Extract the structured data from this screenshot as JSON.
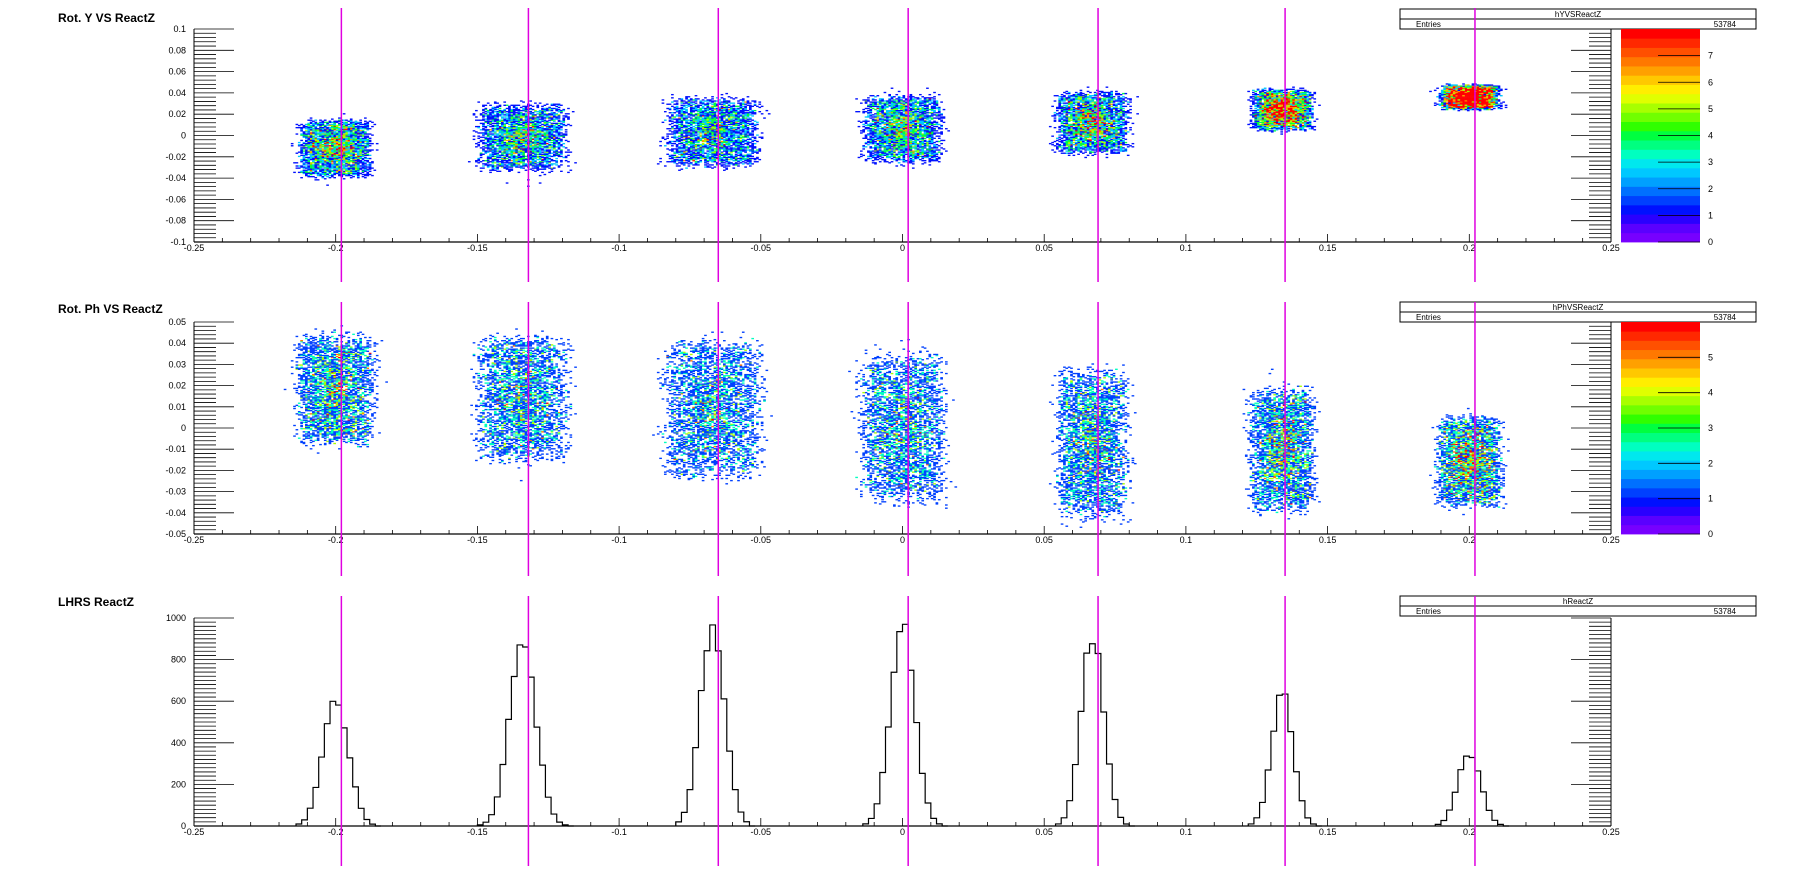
{
  "chart_data": [
    {
      "type": "heatmap",
      "title": "Rot. Y VS ReactZ",
      "stats": {
        "name": "hYVSReactZ",
        "entries_label": "Entries",
        "entries": "53784"
      },
      "x": {
        "min": -0.25,
        "max": 0.25,
        "ticks": [
          -0.25,
          -0.2,
          -0.15,
          -0.1,
          -0.05,
          0,
          0.05,
          0.1,
          0.15,
          0.2,
          0.25
        ],
        "tick_labels": [
          "-0.25",
          "-0.2",
          "-0.15",
          "-0.1",
          "-0.05",
          "0",
          "0.05",
          "0.1",
          "0.15",
          "0.2",
          "0.25"
        ]
      },
      "y": {
        "min": -0.1,
        "max": 0.1,
        "ticks": [
          -0.1,
          -0.08,
          -0.06,
          -0.04,
          -0.02,
          0,
          0.02,
          0.04,
          0.06,
          0.08,
          0.1
        ],
        "tick_labels": [
          "-0.1",
          "-0.08",
          "-0.06",
          "-0.04",
          "-0.02",
          "0",
          "0.02",
          "0.04",
          "0.06",
          "0.08",
          "0.1"
        ]
      },
      "palette": {
        "min": 0,
        "max": 8,
        "ticks": [
          0,
          1,
          2,
          3,
          4,
          5,
          6,
          7
        ],
        "tick_labels": [
          "0",
          "1",
          "2",
          "3",
          "4",
          "5",
          "6",
          "7"
        ]
      },
      "clusters": [
        {
          "x_center": -0.2,
          "x_width": 0.022,
          "y_center": -0.012,
          "y_half_height": 0.028,
          "y_tilt": 0
        },
        {
          "x_center": -0.134,
          "x_width": 0.027,
          "y_center": -0.002,
          "y_half_height": 0.033,
          "y_tilt": 0
        },
        {
          "x_center": -0.067,
          "x_width": 0.028,
          "y_center": 0.003,
          "y_half_height": 0.034,
          "y_tilt": 0
        },
        {
          "x_center": 0.0,
          "x_width": 0.024,
          "y_center": 0.006,
          "y_half_height": 0.033,
          "y_tilt": 0
        },
        {
          "x_center": 0.067,
          "x_width": 0.022,
          "y_center": 0.012,
          "y_half_height": 0.03,
          "y_tilt": 0
        },
        {
          "x_center": 0.134,
          "x_width": 0.018,
          "y_center": 0.024,
          "y_half_height": 0.02,
          "y_tilt": 0
        },
        {
          "x_center": 0.2,
          "x_width": 0.018,
          "y_center": 0.036,
          "y_half_height": 0.012,
          "y_tilt": 0
        }
      ]
    },
    {
      "type": "heatmap",
      "title": "Rot. Ph VS ReactZ",
      "stats": {
        "name": "hPhVSReactZ",
        "entries_label": "Entries",
        "entries": "53784"
      },
      "x": {
        "min": -0.25,
        "max": 0.25,
        "ticks": [
          -0.25,
          -0.2,
          -0.15,
          -0.1,
          -0.05,
          0,
          0.05,
          0.1,
          0.15,
          0.2,
          0.25
        ],
        "tick_labels": [
          "-0.25",
          "-0.2",
          "-0.15",
          "-0.1",
          "-0.05",
          "0",
          "0.05",
          "0.1",
          "0.15",
          "0.2",
          "0.25"
        ]
      },
      "y": {
        "min": -0.05,
        "max": 0.05,
        "ticks": [
          -0.05,
          -0.04,
          -0.03,
          -0.02,
          -0.01,
          0,
          0.01,
          0.02,
          0.03,
          0.04,
          0.05
        ],
        "tick_labels": [
          "-0.05",
          "-0.04",
          "-0.03",
          "-0.02",
          "-0.01",
          "0",
          "0.01",
          "0.02",
          "0.03",
          "0.04",
          "0.05"
        ]
      },
      "palette": {
        "min": 0,
        "max": 6,
        "ticks": [
          0,
          1,
          2,
          3,
          4,
          5
        ],
        "tick_labels": [
          "0",
          "1",
          "2",
          "3",
          "4",
          "5"
        ]
      },
      "clusters": [
        {
          "x_center": -0.2,
          "x_width": 0.024,
          "y_center": 0.018,
          "y_half_height": 0.027,
          "y_tilt": 0
        },
        {
          "x_center": -0.134,
          "x_width": 0.028,
          "y_center": 0.014,
          "y_half_height": 0.031,
          "y_tilt": 0
        },
        {
          "x_center": -0.067,
          "x_width": 0.03,
          "y_center": 0.009,
          "y_half_height": 0.034,
          "y_tilt": 0
        },
        {
          "x_center": 0.0,
          "x_width": 0.026,
          "y_center": 0.0,
          "y_half_height": 0.037,
          "y_tilt": 0
        },
        {
          "x_center": 0.067,
          "x_width": 0.022,
          "y_center": -0.007,
          "y_half_height": 0.036,
          "y_tilt": 0
        },
        {
          "x_center": 0.134,
          "x_width": 0.02,
          "y_center": -0.01,
          "y_half_height": 0.03,
          "y_tilt": 0
        },
        {
          "x_center": 0.2,
          "x_width": 0.02,
          "y_center": -0.016,
          "y_half_height": 0.022,
          "y_tilt": 0
        }
      ]
    },
    {
      "type": "bar",
      "title": "LHRS ReactZ",
      "stats": {
        "name": "hReactZ",
        "entries_label": "Entries",
        "entries": "53784"
      },
      "x": {
        "min": -0.25,
        "max": 0.25,
        "ticks": [
          -0.25,
          -0.2,
          -0.15,
          -0.1,
          -0.05,
          0,
          0.05,
          0.1,
          0.15,
          0.2,
          0.25
        ],
        "tick_labels": [
          "-0.25",
          "-0.2",
          "-0.15",
          "-0.1",
          "-0.05",
          "0",
          "0.05",
          "0.1",
          "0.15",
          "0.2",
          "0.25"
        ]
      },
      "y": {
        "min": 0,
        "max": 1000,
        "ticks": [
          0,
          200,
          400,
          600,
          800,
          1000
        ],
        "tick_labels": [
          "0",
          "200",
          "400",
          "600",
          "800",
          "1000"
        ]
      },
      "peaks": [
        {
          "center": -0.2,
          "height": 610,
          "sigma": 0.0045
        },
        {
          "center": -0.134,
          "height": 870,
          "sigma": 0.0047
        },
        {
          "center": -0.067,
          "height": 970,
          "sigma": 0.0043
        },
        {
          "center": 0.0,
          "height": 960,
          "sigma": 0.0043
        },
        {
          "center": 0.067,
          "height": 910,
          "sigma": 0.004
        },
        {
          "center": 0.134,
          "height": 640,
          "sigma": 0.0038
        },
        {
          "center": 0.2,
          "height": 345,
          "sigma": 0.004
        }
      ]
    }
  ],
  "marker_lines": {
    "color": "#e000e0",
    "x_values": [
      -0.198,
      -0.132,
      -0.065,
      0.002,
      0.069,
      0.135,
      0.202
    ]
  }
}
